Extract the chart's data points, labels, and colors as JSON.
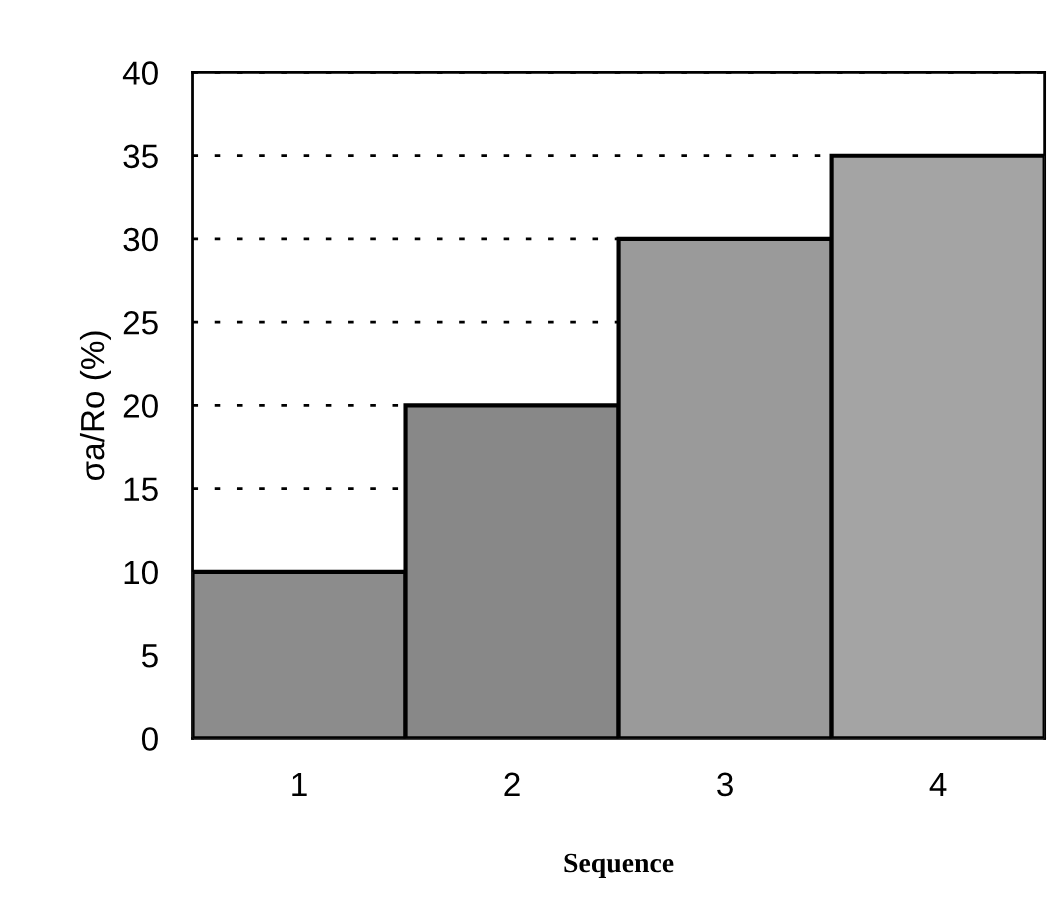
{
  "chart_data": {
    "type": "bar",
    "xlabel": "Sequence",
    "ylabel": "σa/Ro (%)",
    "categories": [
      "1",
      "2",
      "3",
      "4"
    ],
    "values": [
      10,
      20,
      30,
      35
    ],
    "colors": [
      "#8c8c8c",
      "#888888",
      "#9a9a9a",
      "#a4a4a4"
    ],
    "ylim": [
      0,
      40
    ],
    "yticks": [
      0,
      5,
      10,
      15,
      20,
      25,
      30,
      35,
      40
    ],
    "grid": "y",
    "line_style": "dotted"
  }
}
